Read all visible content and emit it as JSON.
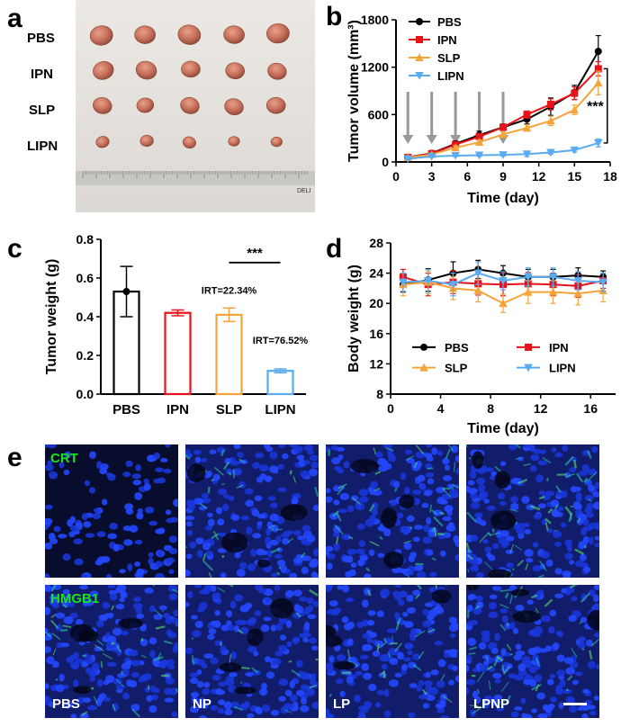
{
  "panels": {
    "a": {
      "letter": "a",
      "groups": [
        "PBS",
        "IPN",
        "SLP",
        "LIPN"
      ],
      "ruler_brand": "DELI"
    },
    "b": {
      "letter": "b"
    },
    "c": {
      "letter": "c"
    },
    "d": {
      "letter": "d"
    },
    "e": {
      "letter": "e",
      "stains": [
        "CRT",
        "HMGB1"
      ],
      "columns": [
        "PBS",
        "NP",
        "LP",
        "LPNP"
      ]
    }
  },
  "colors": {
    "PBS": "#000000",
    "IPN": "#e8121b",
    "SLP": "#f5a43a",
    "LIPN": "#5aabf0",
    "arrow": "#999999",
    "stain_green": "#19e619"
  },
  "chart_data": [
    {
      "id": "tumor-volume",
      "type": "line",
      "ylabel": "Tumor volume (mm³)",
      "xlabel": "Time (day)",
      "xlim": [
        0,
        18
      ],
      "ylim": [
        0,
        1800
      ],
      "xticks": [
        0,
        3,
        6,
        9,
        12,
        15,
        18
      ],
      "yticks": [
        0,
        600,
        1200,
        1800
      ],
      "x": [
        1,
        3,
        5,
        7,
        9,
        11,
        13,
        15,
        17
      ],
      "series": [
        {
          "name": "PBS",
          "marker": "circle",
          "values": [
            60,
            110,
            230,
            340,
            440,
            540,
            700,
            880,
            1400
          ],
          "errors": [
            15,
            25,
            35,
            50,
            40,
            60,
            110,
            90,
            200
          ]
        },
        {
          "name": "IPN",
          "marker": "square",
          "values": [
            58,
            105,
            220,
            320,
            440,
            600,
            730,
            870,
            1180
          ],
          "errors": [
            15,
            20,
            30,
            40,
            35,
            45,
            70,
            80,
            90
          ]
        },
        {
          "name": "SLP",
          "marker": "triangle-up",
          "values": [
            55,
            95,
            180,
            250,
            350,
            430,
            520,
            660,
            1000
          ],
          "errors": [
            10,
            15,
            25,
            30,
            30,
            40,
            60,
            60,
            150
          ]
        },
        {
          "name": "LIPN",
          "marker": "triangle-down",
          "values": [
            40,
            70,
            80,
            85,
            90,
            100,
            120,
            150,
            240
          ],
          "errors": [
            8,
            10,
            12,
            15,
            15,
            30,
            20,
            25,
            50
          ]
        }
      ],
      "arrow_days": [
        1,
        3,
        5,
        7,
        9
      ],
      "significance": "***"
    },
    {
      "id": "tumor-weight",
      "type": "bar",
      "ylabel": "Tumor weight (g)",
      "ylim": [
        0,
        0.8
      ],
      "yticks": [
        0.0,
        0.2,
        0.4,
        0.6,
        0.8
      ],
      "categories": [
        "PBS",
        "IPN",
        "SLP",
        "LIPN"
      ],
      "values": [
        0.53,
        0.42,
        0.41,
        0.12
      ],
      "errors": [
        0.13,
        0.015,
        0.035,
        0.01
      ],
      "annotations": {
        "SLP": "IRT=22.34%",
        "LIPN": "IRT=76.52%"
      },
      "significance": "***"
    },
    {
      "id": "body-weight",
      "type": "line",
      "ylabel": "Body weight (g)",
      "xlabel": "Time (day)",
      "xlim": [
        0,
        18
      ],
      "ylim": [
        8,
        28
      ],
      "xticks": [
        0,
        4,
        8,
        12,
        16
      ],
      "yticks": [
        8,
        12,
        16,
        20,
        24,
        28
      ],
      "x": [
        1,
        3,
        5,
        7,
        9,
        11,
        13,
        15,
        17
      ],
      "series": [
        {
          "name": "PBS",
          "marker": "circle",
          "values": [
            22.5,
            23.1,
            24.0,
            24.5,
            24.0,
            23.5,
            23.5,
            23.7,
            23.5
          ],
          "errors": [
            1.0,
            1.5,
            1.5,
            1.2,
            1.0,
            1.0,
            1.0,
            1.0,
            0.8
          ]
        },
        {
          "name": "IPN",
          "marker": "square",
          "values": [
            23.5,
            22.5,
            22.8,
            22.6,
            22.5,
            22.6,
            22.5,
            22.3,
            23.0
          ],
          "errors": [
            1.0,
            1.5,
            1.5,
            1.5,
            1.5,
            1.5,
            1.5,
            1.5,
            1.0
          ]
        },
        {
          "name": "SLP",
          "marker": "triangle-up",
          "values": [
            22.5,
            22.8,
            22.0,
            21.7,
            20.0,
            21.5,
            21.5,
            21.3,
            21.7
          ],
          "errors": [
            1.5,
            1.5,
            1.5,
            1.5,
            1.2,
            1.5,
            1.5,
            1.5,
            1.5
          ]
        },
        {
          "name": "LIPN",
          "marker": "triangle-down",
          "values": [
            22.8,
            23.0,
            22.5,
            24.0,
            23.0,
            23.5,
            23.5,
            23.0,
            22.8
          ],
          "errors": [
            1.2,
            1.5,
            1.5,
            1.5,
            1.2,
            1.2,
            1.2,
            1.2,
            1.2
          ]
        }
      ],
      "legend_order": [
        "PBS",
        "IPN",
        "SLP",
        "LIPN"
      ]
    }
  ]
}
